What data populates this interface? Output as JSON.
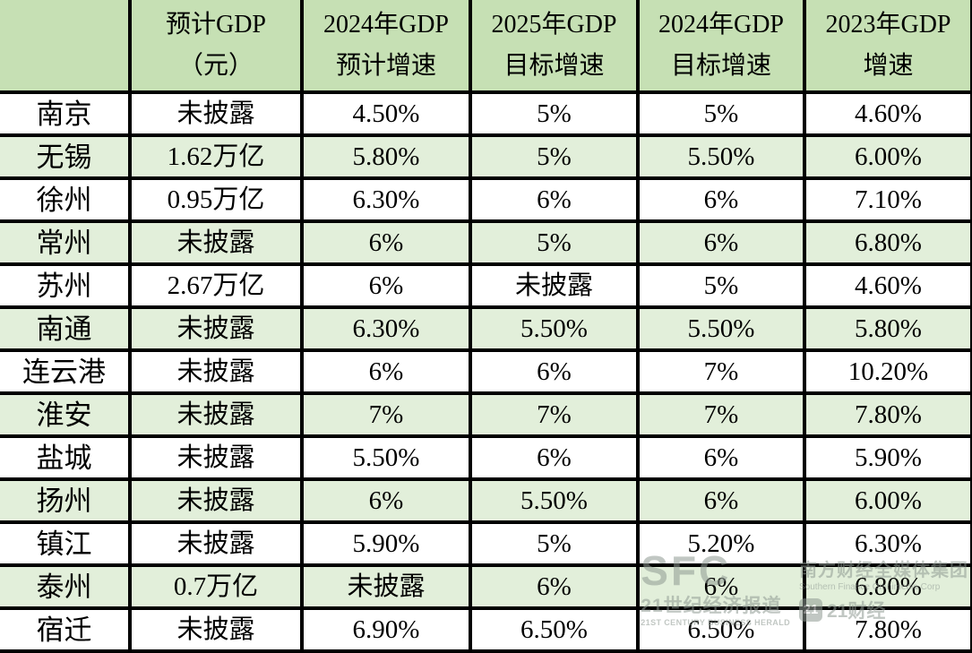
{
  "table": {
    "columns": [
      {
        "line1": "",
        "line2": ""
      },
      {
        "line1": "预计GDP",
        "line2": "（元）"
      },
      {
        "line1": "2024年GDP",
        "line2": "预计增速"
      },
      {
        "line1": "2025年GDP",
        "line2": "目标增速"
      },
      {
        "line1": "2024年GDP",
        "line2": "目标增速"
      },
      {
        "line1": "2023年GDP",
        "line2": "增速"
      }
    ],
    "rows": [
      {
        "city": "南京",
        "values": [
          "未披露",
          "4.50%",
          "5%",
          "5%",
          "4.60%"
        ]
      },
      {
        "city": "无锡",
        "values": [
          "1.62万亿",
          "5.80%",
          "5%",
          "5.50%",
          "6.00%"
        ]
      },
      {
        "city": "徐州",
        "values": [
          "0.95万亿",
          "6.30%",
          "6%",
          "6%",
          "7.10%"
        ]
      },
      {
        "city": "常州",
        "values": [
          "未披露",
          "6%",
          "5%",
          "6%",
          "6.80%"
        ]
      },
      {
        "city": "苏州",
        "values": [
          "2.67万亿",
          "6%",
          "未披露",
          "5%",
          "4.60%"
        ]
      },
      {
        "city": "南通",
        "values": [
          "未披露",
          "6.30%",
          "5.50%",
          "5.50%",
          "5.80%"
        ]
      },
      {
        "city": "连云港",
        "values": [
          "未披露",
          "6%",
          "6%",
          "7%",
          "10.20%"
        ]
      },
      {
        "city": "淮安",
        "values": [
          "未披露",
          "7%",
          "7%",
          "7%",
          "7.80%"
        ]
      },
      {
        "city": "盐城",
        "values": [
          "未披露",
          "5.50%",
          "6%",
          "6%",
          "5.90%"
        ]
      },
      {
        "city": "扬州",
        "values": [
          "未披露",
          "6%",
          "5.50%",
          "6%",
          "6.00%"
        ]
      },
      {
        "city": "镇江",
        "values": [
          "未披露",
          "5.90%",
          "5%",
          "5.20%",
          "6.30%"
        ]
      },
      {
        "city": "泰州",
        "values": [
          "0.7万亿",
          "未披露",
          "6%",
          "6%",
          "6.80%"
        ]
      },
      {
        "city": "宿迁",
        "values": [
          "未披露",
          "6.90%",
          "6.50%",
          "6.50%",
          "7.80%"
        ]
      }
    ]
  },
  "chart_data": {
    "type": "table",
    "columns": [
      "",
      "预计GDP（元）",
      "2024年GDP预计增速",
      "2025年GDP目标增速",
      "2024年GDP目标增速",
      "2023年GDP增速"
    ],
    "rows": [
      [
        "南京",
        "未披露",
        "4.50%",
        "5%",
        "5%",
        "4.60%"
      ],
      [
        "无锡",
        "1.62万亿",
        "5.80%",
        "5%",
        "5.50%",
        "6.00%"
      ],
      [
        "徐州",
        "0.95万亿",
        "6.30%",
        "6%",
        "6%",
        "7.10%"
      ],
      [
        "常州",
        "未披露",
        "6%",
        "5%",
        "6%",
        "6.80%"
      ],
      [
        "苏州",
        "2.67万亿",
        "6%",
        "未披露",
        "5%",
        "4.60%"
      ],
      [
        "南通",
        "未披露",
        "6.30%",
        "5.50%",
        "5.50%",
        "5.80%"
      ],
      [
        "连云港",
        "未披露",
        "6%",
        "6%",
        "7%",
        "10.20%"
      ],
      [
        "淮安",
        "未披露",
        "7%",
        "7%",
        "7%",
        "7.80%"
      ],
      [
        "盐城",
        "未披露",
        "5.50%",
        "6%",
        "6%",
        "5.90%"
      ],
      [
        "扬州",
        "未披露",
        "6%",
        "5.50%",
        "6%",
        "6.00%"
      ],
      [
        "镇江",
        "未披露",
        "5.90%",
        "5%",
        "5.20%",
        "6.30%"
      ],
      [
        "泰州",
        "0.7万亿",
        "未披露",
        "6%",
        "6%",
        "6.80%"
      ],
      [
        "宿迁",
        "未披露",
        "6.90%",
        "6.50%",
        "6.50%",
        "7.80%"
      ]
    ],
    "layout_hints": {
      "header_bg": "#c6e0b4",
      "alt_row_bg": "#e2efda",
      "row_bg": "#ffffff",
      "border_color": "#000000",
      "zebra_striping": true
    }
  },
  "watermark": {
    "sfc_logo": "SFC",
    "group_cn": "南方财经全媒体集团",
    "group_en": "Southern Finance Omnimedia Corp",
    "herald_cn": "21世纪经济报道",
    "herald_en": "21ST CENTURY BUSINESS HERALD",
    "app_badge": "21",
    "app_name": "21财经"
  },
  "colors": {
    "header_bg": "#c6e0b4",
    "alt_row_bg": "#e2efda",
    "row_bg": "#ffffff",
    "border": "#000000",
    "text": "#000000",
    "watermark": "#8f9a93"
  }
}
